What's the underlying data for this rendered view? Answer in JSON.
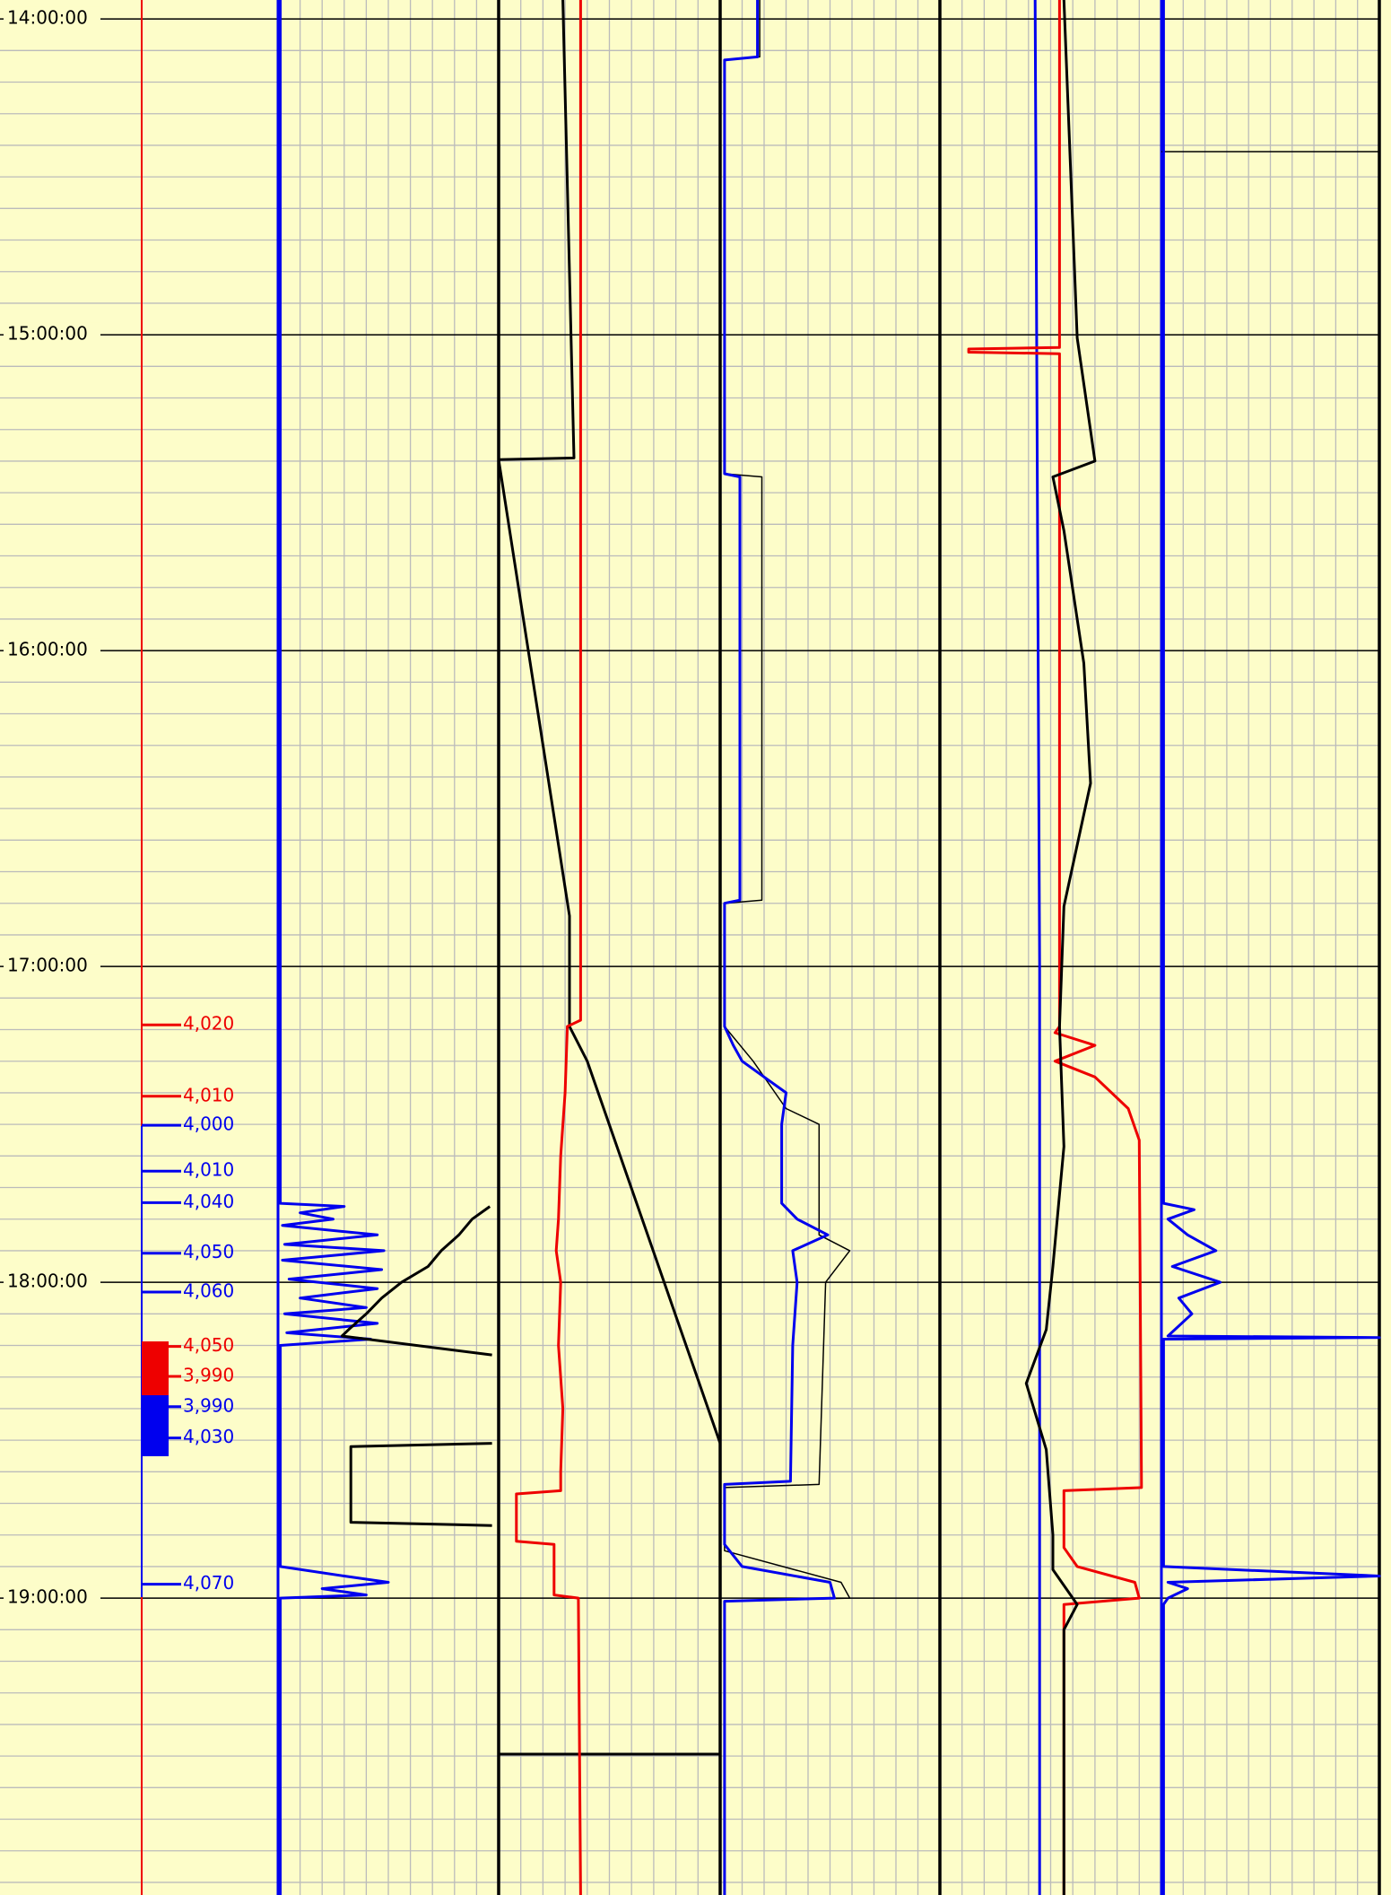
{
  "chart_data": {
    "type": "line",
    "ylim": [
      13.94,
      19.94
    ],
    "yticks": [
      {
        "value": 14,
        "label": "14:00:00"
      },
      {
        "value": 15,
        "label": "15:00:00"
      },
      {
        "value": 16,
        "label": "16:00:00"
      },
      {
        "value": 17,
        "label": "17:00:00"
      },
      {
        "value": 18,
        "label": "18:00:00"
      },
      {
        "value": 19,
        "label": "19:00:00"
      }
    ],
    "xlim": [
      0,
      100
    ],
    "grid": true,
    "depth_labels": [
      {
        "time": 17.185,
        "value": 4020,
        "label": "4,020",
        "color": "#ee0000"
      },
      {
        "time": 17.411,
        "value": 4010,
        "label": "4,010",
        "color": "#ee0000"
      },
      {
        "time": 17.503,
        "value": 4000,
        "label": "4,000",
        "color": "#0000ee"
      },
      {
        "time": 17.648,
        "value": 4010,
        "label": "4,010",
        "color": "#0000ee"
      },
      {
        "time": 17.748,
        "value": 4040,
        "label": "4,040",
        "color": "#0000ee"
      },
      {
        "time": 17.908,
        "value": 4050,
        "label": "4,050",
        "color": "#0000ee"
      },
      {
        "time": 18.031,
        "value": 4060,
        "label": "4,060",
        "color": "#0000ee"
      },
      {
        "time": 18.203,
        "value": 4050,
        "label": "4,050",
        "color": "#ee0000"
      },
      {
        "time": 18.298,
        "value": 3990,
        "label": "3,990",
        "color": "#ee0000"
      },
      {
        "time": 18.394,
        "value": 3990,
        "label": "3,990",
        "color": "#0000ee"
      },
      {
        "time": 18.493,
        "value": 4030,
        "label": "4,030",
        "color": "#0000ee"
      },
      {
        "time": 18.956,
        "value": 4070,
        "label": "4,070",
        "color": "#0000ee"
      }
    ],
    "tracks": [
      {
        "series": [
          {
            "color": "#0000ee",
            "x": [
              13.94,
              17.75,
              17.76,
              17.78,
              17.8,
              17.82,
              17.85,
              17.88,
              17.9,
              17.93,
              17.96,
              17.99,
              18.02,
              18.05,
              18.08,
              18.1,
              18.13,
              18.16,
              18.18,
              18.2,
              18.9,
              18.93,
              18.95,
              18.97,
              18.99,
              19.0,
              19.94
            ],
            "values": [
              1,
              1,
              30,
              10,
              25,
              2,
              45,
              3,
              48,
              2,
              47,
              5,
              45,
              10,
              40,
              3,
              45,
              4,
              42,
              1,
              1,
              30,
              50,
              20,
              40,
              1,
              1
            ]
          },
          {
            "color": "#000000",
            "x": [
              17.76,
              17.8,
              17.85,
              17.9,
              17.95,
              18.0,
              18.05,
              18.1,
              18.15,
              18.17,
              18.23,
              18.3,
              18.51,
              18.52,
              18.76,
              18.77
            ],
            "values": [
              96,
              88,
              82,
              74,
              68,
              56,
              47,
              40,
              32,
              29,
              97,
              null,
              97,
              33,
              33,
              97
            ]
          }
        ]
      },
      {
        "series": [
          {
            "color": "#000000",
            "x": [
              13.94,
              15.39,
              15.395,
              16.84,
              17.19,
              17.3,
              18.51
            ],
            "values": [
              29,
              34,
              0,
              32,
              32,
              40,
              100
            ]
          },
          {
            "color": "#ee0000",
            "x": [
              13.94,
              17.17,
              17.19,
              17.4,
              17.6,
              17.8,
              17.9,
              18.0,
              18.2,
              18.4,
              18.6,
              18.66,
              18.67,
              18.82,
              18.83,
              18.99,
              19.0,
              19.94
            ],
            "values": [
              37,
              37,
              31,
              30,
              28,
              27,
              26,
              28,
              27,
              29,
              28,
              28,
              8,
              8,
              25,
              25,
              36,
              37
            ]
          }
        ]
      },
      {
        "series": [
          {
            "color": "#000000",
            "x": [
              13.94,
              14.12,
              14.13,
              15.44,
              15.45,
              16.79,
              16.8,
              17.19,
              17.3,
              17.45,
              17.5,
              17.85,
              17.9,
              18.0,
              18.64,
              18.65,
              18.85,
              18.95,
              19.0,
              19.01,
              19.94
            ],
            "values": [
              18,
              18,
              2,
              2,
              19,
              19,
              2,
              2,
              15,
              30,
              45,
              45,
              59,
              48,
              45,
              2,
              2,
              55,
              59,
              2,
              2
            ]
          },
          {
            "color": "#0000ee",
            "x": [
              13.94,
              14.12,
              14.13,
              15.44,
              15.45,
              16.79,
              16.8,
              17.19,
              17.25,
              17.3,
              17.35,
              17.4,
              17.5,
              17.75,
              17.8,
              17.85,
              17.9,
              18.0,
              18.2,
              18.63,
              18.64,
              18.83,
              18.9,
              18.95,
              19.0,
              19.01,
              19.94
            ],
            "values": [
              17,
              17,
              2,
              2,
              9,
              9,
              2,
              2,
              6,
              10,
              20,
              30,
              28,
              28,
              35,
              49,
              33,
              35,
              33,
              32,
              2,
              2,
              10,
              50,
              52,
              2,
              2
            ]
          }
        ]
      },
      {
        "series": [
          {
            "color": "#0000ee",
            "x": [
              13.94,
              15.5,
              17.0,
              18.5,
              19.94
            ],
            "values": [
              43,
              44,
              45,
              45,
              45
            ]
          },
          {
            "color": "#ee0000",
            "x": [
              13.94,
              15.04,
              15.045,
              15.055,
              15.06,
              17.19,
              17.21,
              17.25,
              17.3,
              17.35,
              17.45,
              17.55,
              18.65,
              18.66,
              18.84,
              18.9,
              18.95,
              19.0,
              19.02,
              19.94
            ],
            "values": [
              54,
              54,
              13,
              13,
              54,
              54,
              52,
              70,
              52,
              70,
              85,
              90,
              91,
              56,
              56,
              62,
              88,
              90,
              56,
              56
            ]
          },
          {
            "color": "#000000",
            "x": [
              13.94,
              15.01,
              15.4,
              15.45,
              15.62,
              16.04,
              16.42,
              16.81,
              17.19,
              17.57,
              17.95,
              18.15,
              18.32,
              18.53,
              18.8,
              18.91,
              19.02,
              19.1,
              19.94
            ],
            "values": [
              56,
              62,
              70,
              51,
              56,
              65,
              68,
              56,
              54,
              56,
              51,
              48,
              39,
              48,
              51,
              51,
              62,
              56,
              56
            ]
          }
        ]
      },
      {
        "series": [
          {
            "color": "#0000ee",
            "x": [
              13.94,
              17.75,
              17.77,
              17.8,
              17.85,
              17.9,
              17.95,
              18.0,
              18.05,
              18.1,
              18.17,
              18.175,
              18.18,
              18.9,
              18.93,
              18.95,
              18.97,
              19.0,
              19.02,
              19.94
            ],
            "values": [
              1,
              1,
              15,
              3,
              12,
              25,
              5,
              27,
              8,
              14,
              3,
              100,
              1,
              1,
              100,
              3,
              12,
              3,
              1,
              1
            ]
          }
        ]
      }
    ]
  }
}
